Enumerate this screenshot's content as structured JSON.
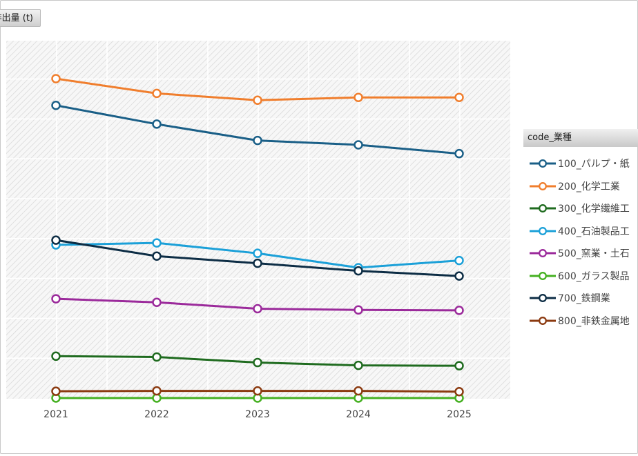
{
  "chart_data": {
    "type": "line",
    "ylabel": "排出量 (t)",
    "categories": [
      "2021",
      "2022",
      "2023",
      "2024",
      "2025"
    ],
    "ylim": [
      0,
      900
    ],
    "grid": true,
    "legend_title": "code_業種",
    "legend_position": "right",
    "series": [
      {
        "name": "100_パルプ・紙",
        "color": "#1a5f87",
        "values": [
          734,
          687,
          646,
          635,
          613
        ]
      },
      {
        "name": "200_化学工業",
        "color": "#f07e2d",
        "values": [
          801,
          764,
          747,
          754,
          754
        ]
      },
      {
        "name": "300_化学繊維工",
        "color": "#1f6b1f",
        "values": [
          105,
          103,
          89,
          82,
          81
        ]
      },
      {
        "name": "400_石油製品工",
        "color": "#1ba0d8",
        "values": [
          384,
          389,
          363,
          327,
          345
        ]
      },
      {
        "name": "500_窯業・土石",
        "color": "#9b2a9b",
        "values": [
          249,
          240,
          224,
          221,
          220
        ]
      },
      {
        "name": "600_ガラス製品",
        "color": "#45b021",
        "values": [
          0,
          0,
          0,
          0,
          0
        ]
      },
      {
        "name": "700_鉄鋼業",
        "color": "#0d2d45",
        "values": [
          396,
          356,
          338,
          319,
          306
        ]
      },
      {
        "name": "800_非鉄金属地",
        "color": "#8b3a10",
        "values": [
          17,
          18,
          18,
          18,
          16
        ]
      }
    ]
  }
}
